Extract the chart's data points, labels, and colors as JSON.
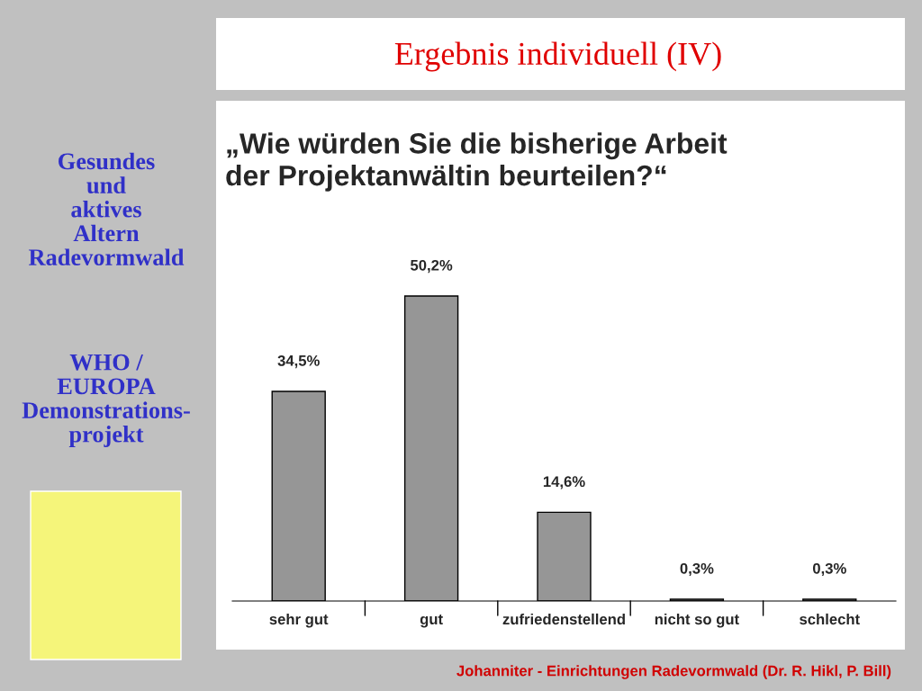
{
  "chart_data": {
    "type": "bar",
    "title": "Ergebnis individuell (IV)",
    "subtitle": "„Wie würden Sie die bisherige Arbeit\nder Projektanwältin beurteilen?“",
    "categories": [
      "sehr gut",
      "gut",
      "zufriedenstellend",
      "nicht so gut",
      "schlecht"
    ],
    "values": [
      34.5,
      50.2,
      14.6,
      0.3,
      0.3
    ],
    "value_labels": [
      "34,5%",
      "50,2%",
      "14,6%",
      "0,3%",
      "0,3%"
    ],
    "color": "#969696",
    "annotations": [
      "Gesundes\nund\naktives\nAltern\nRadevormwald",
      "WHO /\nEUROPA\nDemonstrations-\nprojekt",
      "Johanniter - Einrichtungen Radevormwald (Dr. R. Hikl, P. Bill)"
    ]
  }
}
